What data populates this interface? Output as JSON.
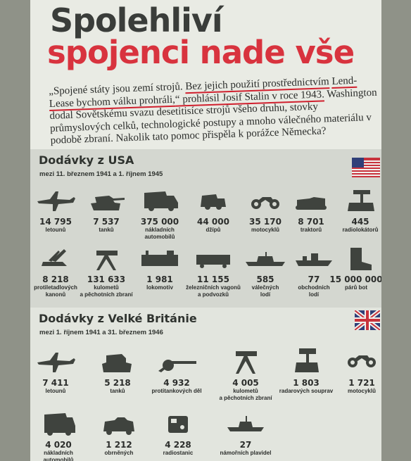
{
  "title": {
    "line1": "Spolehliví",
    "line2": "spojenci nade vše"
  },
  "intro": {
    "p1": "„Spojené státy jsou zemí strojů. ",
    "p2": "Bez jejich použití prostřednictvím",
    "p3": "Lend-Lease bychom válku prohráli,",
    "p4": "“ prohlásil Josif Stalin v roce 1943.",
    "p5": " Washington dodal Sovětskému svazu desetitisíce strojů všeho druhu, stovky průmyslových celků, technologické postupy a mnoho válečného materiálu v podobě zbraní. Nakolik tato pomoc přispěla k porážce Německa?"
  },
  "usa": {
    "title": "Dodávky z USA",
    "subtitle": "mezi 11. březnem 1941 a 1. říjnem 1945",
    "flag_icon": "usa-flag-icon",
    "items": [
      {
        "icon": "airplane-icon",
        "value": "14 795",
        "label1": "letounů",
        "label2": ""
      },
      {
        "icon": "tank-icon",
        "value": "7 537",
        "label1": "tanků",
        "label2": ""
      },
      {
        "icon": "truck-icon",
        "value": "375 000",
        "label1": "nákladních automobilů",
        "label2": ""
      },
      {
        "icon": "jeep-icon",
        "value": "44 000",
        "label1": "džípů",
        "label2": ""
      },
      {
        "icon": "motorcycle-icon",
        "value": "35 170",
        "label1": "motocyklů",
        "label2": ""
      },
      {
        "icon": "tractor-icon",
        "value": "8 701",
        "label1": "traktorů",
        "label2": ""
      },
      {
        "icon": "radar-icon",
        "value": "445",
        "label1": "radiolokátorů",
        "label2": ""
      },
      {
        "icon": "anti-aircraft-gun-icon",
        "value": "8 218",
        "label1": "protiletadlových",
        "label2": "kanonů"
      },
      {
        "icon": "machine-gun-icon",
        "value": "131 633",
        "label1": "kulometů",
        "label2": "a pěchotních zbraní"
      },
      {
        "icon": "locomotive-icon",
        "value": "1 981",
        "label1": "lokomotiv",
        "label2": ""
      },
      {
        "icon": "railcar-icon",
        "value": "11 155",
        "label1": "železničních vagonů",
        "label2": "a podvozků"
      },
      {
        "icon": "warship-icon",
        "value": "585",
        "label1": "válečných",
        "label2": "lodí"
      },
      {
        "icon": "cargo-ship-icon",
        "value": "77",
        "label1": "obchodních",
        "label2": "lodí"
      },
      {
        "icon": "boot-icon",
        "value": "15 000 000",
        "label1": "párů bot",
        "label2": ""
      }
    ]
  },
  "uk": {
    "title": "Dodávky z Velké Británie",
    "subtitle": "mezi 1. říjnem 1941 a 31. březnem 1946",
    "flag_icon": "uk-flag-icon",
    "items": [
      {
        "icon": "airplane-icon",
        "value": "7 411",
        "label1": "letounů",
        "label2": ""
      },
      {
        "icon": "tank-icon",
        "value": "5 218",
        "label1": "tanků",
        "label2": ""
      },
      {
        "icon": "anti-tank-gun-icon",
        "value": "4 932",
        "label1": "protitankových děl",
        "label2": ""
      },
      {
        "icon": "machine-gun-icon",
        "value": "4 005",
        "label1": "kulometů",
        "label2": "a pěchotních zbraní"
      },
      {
        "icon": "radar-icon",
        "value": "1 803",
        "label1": "radarových souprav",
        "label2": ""
      },
      {
        "icon": "motorcycle-icon",
        "value": "1 721",
        "label1": "motocyklů",
        "label2": ""
      },
      {
        "icon": "truck-icon",
        "value": "4 020",
        "label1": "nákladních automobilů",
        "label2": ""
      },
      {
        "icon": "armored-car-icon",
        "value": "1 212",
        "label1": "obrněných",
        "label2": ""
      },
      {
        "icon": "radio-station-icon",
        "value": "4 228",
        "label1": "radiostanic",
        "label2": ""
      },
      {
        "icon": "naval-ship-icon",
        "value": "27",
        "label1": "námořních plavidel",
        "label2": ""
      }
    ]
  }
}
